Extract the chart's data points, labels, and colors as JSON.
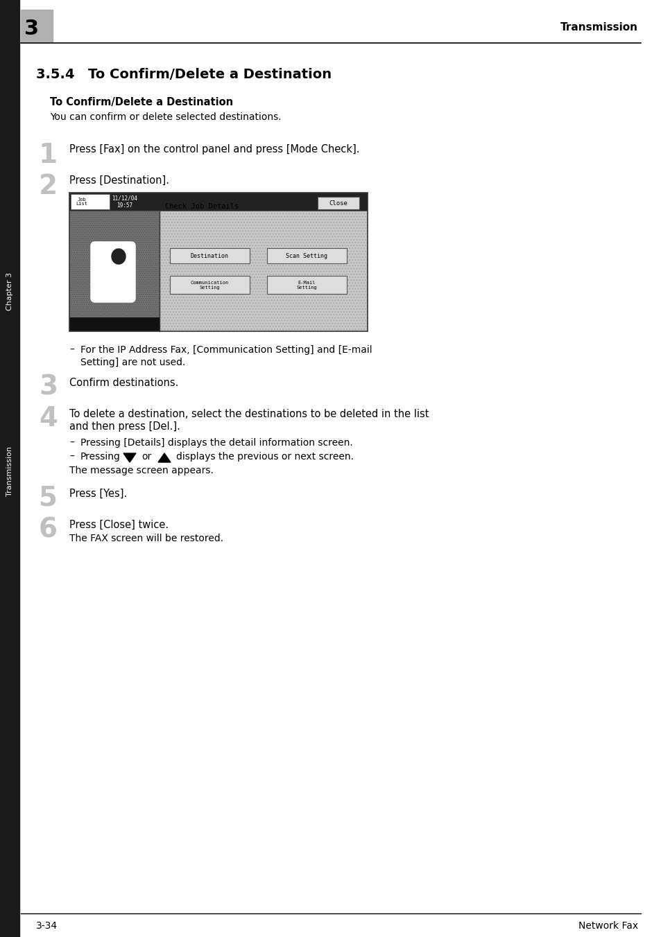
{
  "page_title": "Transmission",
  "chapter_number": "3",
  "section_title": "3.5.4 To Confirm/Delete a Destination",
  "bold_heading": "To Confirm/Delete a Destination",
  "intro_text": "You can confirm or delete selected destinations.",
  "step1_num": "1",
  "step1_text": "Press [Fax] on the control panel and press [Mode Check].",
  "step2_num": "2",
  "step2_text": "Press [Destination].",
  "bullet1_line1": "For the IP Address Fax, [Communication Setting] and [E-mail",
  "bullet1_line2": "Setting] are not used.",
  "step3_num": "3",
  "step3_text": "Confirm destinations.",
  "step4_num": "4",
  "step4_line1": "To delete a destination, select the destinations to be deleted in the list",
  "step4_line2": "and then press [Del.].",
  "bullet2": "Pressing [Details] displays the detail information screen.",
  "bullet3_pre": "Pressing",
  "bullet3_mid": "or",
  "bullet3_post": "displays the previous or next screen.",
  "message_text": "The message screen appears.",
  "step5_num": "5",
  "step5_text": "Press [Yes].",
  "step6_num": "6",
  "step6_text": "Press [Close] twice.",
  "step6_sub": "The FAX screen will be restored.",
  "footer_left": "3-34",
  "footer_right": "Network Fax",
  "sidebar_text": "Transmission",
  "sidebar_text2": "Chapter 3",
  "bg_color": "#ffffff",
  "sidebar_bg": "#1a1a1a",
  "step_num_color_dim": "#aaaaaa",
  "screen_left_bg": "#787878",
  "screen_right_bg": "#c8c8c8",
  "screen_dot_bg": "#b0b0b0"
}
